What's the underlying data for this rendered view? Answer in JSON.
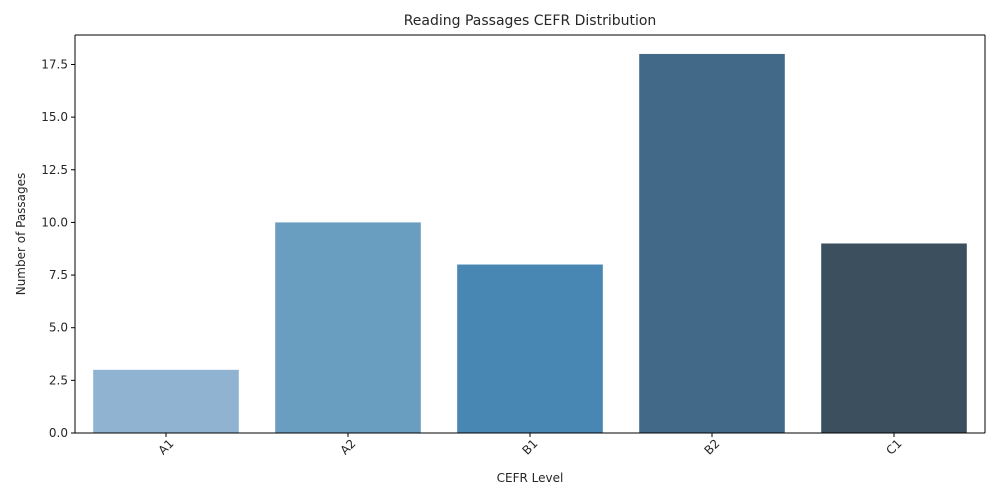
{
  "chart_data": {
    "type": "bar",
    "title": "Reading Passages CEFR Distribution",
    "xlabel": "CEFR Level",
    "ylabel": "Number of Passages",
    "categories": [
      "A1",
      "A2",
      "B1",
      "B2",
      "C1"
    ],
    "values": [
      3,
      10,
      8,
      18,
      9
    ],
    "ylim": [
      0,
      18.9
    ],
    "yticks": [
      "0.0",
      "2.5",
      "5.0",
      "7.5",
      "10.0",
      "12.5",
      "15.0",
      "17.5"
    ],
    "colors": [
      "#8fb3d0",
      "#6a9ec0",
      "#4886b4",
      "#426a88",
      "#3c4f5e"
    ],
    "grid": false,
    "legend": "none"
  }
}
